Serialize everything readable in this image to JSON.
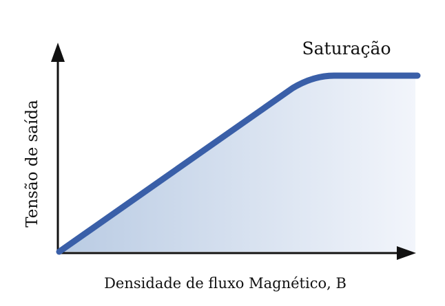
{
  "diagram": {
    "annotation": "Saturação",
    "x_axis_label": "Densidade de fluxo Magnético, B",
    "y_axis_label": "Tensão de saída",
    "colors": {
      "curve": "#3A5FA8",
      "fill_left": "#B9CBE3",
      "fill_right": "#F2F5FB",
      "axis": "#111111"
    }
  }
}
